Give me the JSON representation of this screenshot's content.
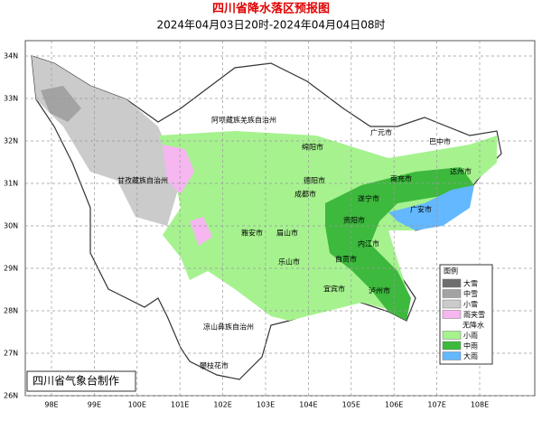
{
  "header": {
    "title": "四川省降水落区预报图",
    "subtitle": "2024年04月03日20时-2024年04月04日08时"
  },
  "axes": {
    "lat_labels": [
      "34N",
      "33N",
      "32N",
      "31N",
      "30N",
      "29N",
      "28N",
      "27N",
      "26N"
    ],
    "lon_labels": [
      "98E",
      "99E",
      "100E",
      "101E",
      "102E",
      "103E",
      "104E",
      "105E",
      "106E",
      "107E",
      "108E"
    ]
  },
  "legend": {
    "title": "图例",
    "items": [
      {
        "label": "大雪",
        "color": "#6e6e6e"
      },
      {
        "label": "中雪",
        "color": "#a3a3a3"
      },
      {
        "label": "小雪",
        "color": "#cbcbcb"
      },
      {
        "label": "雨夹雪",
        "color": "#f6b6f0"
      },
      {
        "label": "无降水",
        "color": "#ffffff"
      },
      {
        "label": "小雨",
        "color": "#a6f28f"
      },
      {
        "label": "中雨",
        "color": "#3db93d"
      },
      {
        "label": "大雨",
        "color": "#63b8ff"
      }
    ]
  },
  "cities": [
    "广元市",
    "巴中市",
    "绵阳市",
    "达州市",
    "南充市",
    "德阳市",
    "遂宁市",
    "成都市",
    "广安市",
    "资阳市",
    "雅安市",
    "眉山市",
    "内江市",
    "乐山市",
    "自贡市",
    "宜宾市",
    "泸州市",
    "阿坝藏族羌族自治州",
    "甘孜藏族自治州",
    "凉山彝族自治州",
    "攀枝花市"
  ],
  "credit": "四川省气象台制作"
}
